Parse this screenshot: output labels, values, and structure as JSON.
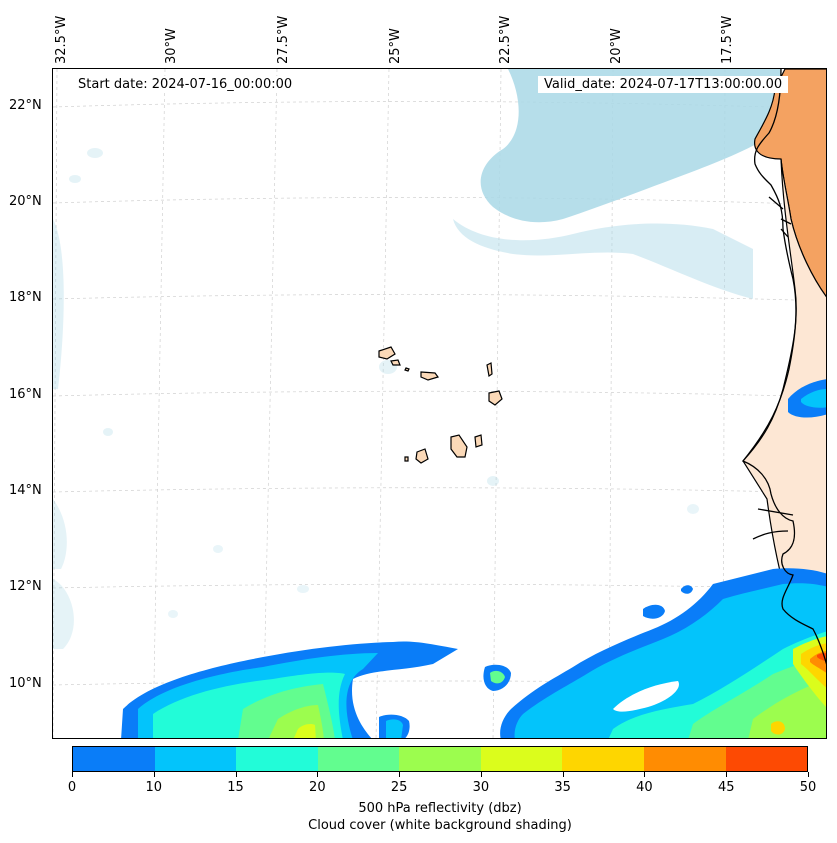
{
  "header": {
    "start_date": "Start date: 2024-07-16_00:00:00",
    "valid_date": "Valid_date: 2024-07-17T13:00:00.00"
  },
  "axes": {
    "lon_labels": [
      "32.5°W",
      "30°W",
      "27.5°W",
      "25°W",
      "22.5°W",
      "20°W",
      "17.5°W"
    ],
    "lat_labels": [
      "22°N",
      "20°N",
      "18°N",
      "16°N",
      "14°N",
      "12°N",
      "10°N"
    ]
  },
  "colorbar": {
    "ticks": [
      "0",
      "10",
      "15",
      "20",
      "25",
      "30",
      "35",
      "40",
      "45",
      "50"
    ],
    "colors": [
      "#0a7df8",
      "#03c4fb",
      "#22fcd8",
      "#62fd8f",
      "#9cfd4e",
      "#dbfd1c",
      "#fed600",
      "#ff8c02",
      "#fd4a03"
    ],
    "label_line1": "500 hPa reflectivity (dbz)",
    "label_line2": "Cloud cover (white background shading)"
  },
  "colors": {
    "land": "#f4a261",
    "land_light": "#fde7d4",
    "cloud": "#a9d8e6",
    "coast": "#000000",
    "grid": "#cccccc"
  }
}
